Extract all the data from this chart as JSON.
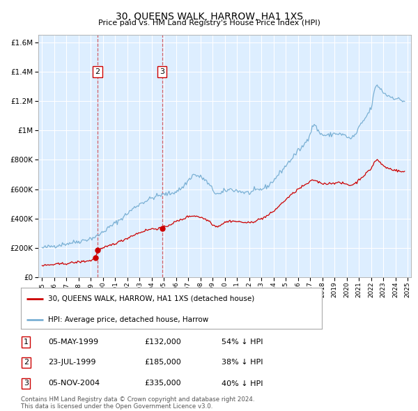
{
  "title": "30, QUEENS WALK, HARROW, HA1 1XS",
  "subtitle": "Price paid vs. HM Land Registry's House Price Index (HPI)",
  "background_color": "#ddeeff",
  "red_line_label": "30, QUEENS WALK, HARROW, HA1 1XS (detached house)",
  "blue_line_label": "HPI: Average price, detached house, Harrow",
  "footer": "Contains HM Land Registry data © Crown copyright and database right 2024.\nThis data is licensed under the Open Government Licence v3.0.",
  "transactions": [
    {
      "num": 1,
      "date": "05-MAY-1999",
      "price": 132000,
      "hpi_diff": "54% ↓ HPI",
      "year": 1999.35,
      "dashed": false
    },
    {
      "num": 2,
      "date": "23-JUL-1999",
      "price": 185000,
      "hpi_diff": "38% ↓ HPI",
      "year": 1999.55,
      "dashed": true
    },
    {
      "num": 3,
      "date": "05-NOV-2004",
      "price": 335000,
      "hpi_diff": "40% ↓ HPI",
      "year": 2004.84,
      "dashed": true
    }
  ],
  "ylim": [
    0,
    1650000
  ],
  "xlim": [
    1994.7,
    2025.3
  ],
  "yticks": [
    0,
    200000,
    400000,
    600000,
    800000,
    1000000,
    1200000,
    1400000,
    1600000
  ],
  "xticks": [
    1995,
    1996,
    1997,
    1998,
    1999,
    2000,
    2001,
    2002,
    2003,
    2004,
    2005,
    2006,
    2007,
    2008,
    2009,
    2010,
    2011,
    2012,
    2013,
    2014,
    2015,
    2016,
    2017,
    2018,
    2019,
    2020,
    2021,
    2022,
    2023,
    2024,
    2025
  ],
  "red_color": "#cc0000",
  "blue_color": "#7ab0d4",
  "annotation_box_color": "#cc0000",
  "ann_y": 1400000
}
